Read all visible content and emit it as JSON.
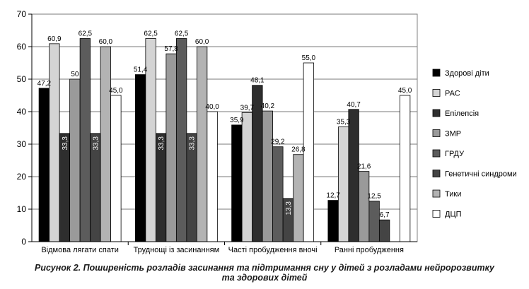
{
  "caption": {
    "line1": "Рисунок 2. Поширеність розладів засинання та підтримання сну у дітей з розладами нейророзвитку",
    "line2": "та здорових дітей"
  },
  "chart_data": {
    "type": "bar",
    "categories": [
      "Відмова лягати спати",
      "Труднощі із засинанням",
      "Часті пробудження вночі",
      "Ранні пробудження"
    ],
    "ylim": [
      0,
      70
    ],
    "yticks": [
      0,
      10,
      20,
      30,
      40,
      50,
      60,
      70
    ],
    "grid": true,
    "legend_position": "right",
    "series": [
      {
        "name": "Здорові діти",
        "color": "#000000",
        "values": [
          47.2,
          51.4,
          35.9,
          12.7
        ],
        "labels": [
          "47,2",
          "51,4",
          "35,9",
          "12,7"
        ]
      },
      {
        "name": "РАС",
        "color": "#d4d4d4",
        "values": [
          60.9,
          62.5,
          39.7,
          35.3
        ],
        "labels": [
          "60,9",
          "62,5",
          "39,7",
          "35,3"
        ]
      },
      {
        "name": "Епілепсія",
        "color": "#2e2e2e",
        "values": [
          33.3,
          33.3,
          48.1,
          40.7
        ],
        "labels": [
          "33,3",
          "33,3",
          "48,1",
          "40,7"
        ]
      },
      {
        "name": "ЗМР",
        "color": "#9a9a9a",
        "values": [
          50,
          57.8,
          40.2,
          21.6
        ],
        "labels": [
          "50",
          "57,8",
          "40,2",
          "21,6"
        ]
      },
      {
        "name": "ГРДУ",
        "color": "#5c5c5c",
        "values": [
          62.5,
          62.5,
          29.2,
          12.5
        ],
        "labels": [
          "62,5",
          "62,5",
          "29,2",
          "12,5"
        ]
      },
      {
        "name": "Генетичні синдроми",
        "color": "#444444",
        "values": [
          33.3,
          33.3,
          13.3,
          6.7
        ],
        "labels": [
          "33,3",
          "33,3",
          "13,3",
          "6,7"
        ]
      },
      {
        "name": "Тики",
        "color": "#b3b3b3",
        "values": [
          60.0,
          60.0,
          26.8,
          null
        ],
        "labels": [
          "60,0",
          "60,0",
          "26,8",
          ""
        ]
      },
      {
        "name": "ДЦП",
        "color": "#ffffff",
        "values": [
          45.0,
          40.0,
          55.0,
          45.0
        ],
        "labels": [
          "45,0",
          "40,0",
          "55,0",
          "45,0"
        ]
      }
    ]
  }
}
